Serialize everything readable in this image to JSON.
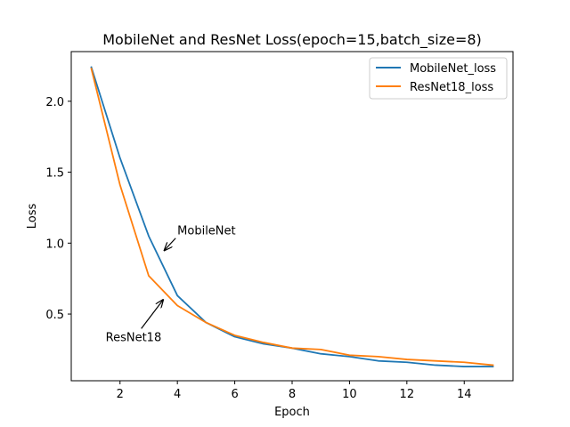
{
  "chart_data": {
    "type": "line",
    "title": "MobileNet and ResNet Loss(epoch=15,batch_size=8)",
    "xlabel": "Epoch",
    "ylabel": "Loss",
    "xlim": [
      0.3,
      15.7
    ],
    "ylim": [
      0.03,
      2.35
    ],
    "xticks": [
      2,
      4,
      6,
      8,
      10,
      12,
      14
    ],
    "xtick_labels": [
      "2",
      "4",
      "6",
      "8",
      "10",
      "12",
      "14"
    ],
    "yticks": [
      0.5,
      1.0,
      1.5,
      2.0
    ],
    "ytick_labels": [
      "0.5",
      "1.0",
      "1.5",
      "2.0"
    ],
    "grid": false,
    "legend_position": "top-right",
    "x": [
      1,
      2,
      3,
      4,
      5,
      6,
      7,
      8,
      9,
      10,
      11,
      12,
      13,
      14,
      15
    ],
    "series": [
      {
        "name": "MobileNet_loss",
        "color": "#1f77b4",
        "values": [
          2.24,
          1.6,
          1.05,
          0.63,
          0.44,
          0.34,
          0.29,
          0.26,
          0.22,
          0.2,
          0.17,
          0.16,
          0.14,
          0.13,
          0.13
        ]
      },
      {
        "name": "ResNet18_loss",
        "color": "#ff7f0e",
        "values": [
          2.23,
          1.41,
          0.77,
          0.56,
          0.44,
          0.35,
          0.3,
          0.26,
          0.25,
          0.21,
          0.2,
          0.18,
          0.17,
          0.16,
          0.14
        ]
      }
    ],
    "annotations": [
      {
        "text": "MobileNet",
        "text_x": 4.0,
        "text_y": 1.06,
        "arrow_to_x": 3.55,
        "arrow_to_y": 0.95
      },
      {
        "text": "ResNet18",
        "text_x": 1.5,
        "text_y": 0.31,
        "arrow_to_x": 3.5,
        "arrow_to_y": 0.6
      }
    ]
  }
}
